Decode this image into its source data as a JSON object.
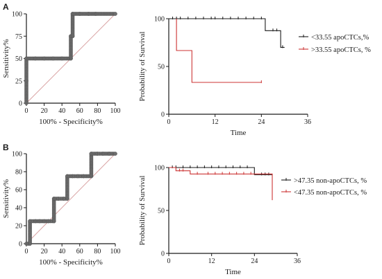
{
  "colors": {
    "black": "#1a1a1a",
    "red": "#cc3333",
    "diag": "#d9a3a3",
    "marker": "#6e6e6e"
  },
  "chart_data": [
    {
      "id": "A-roc",
      "panel_label": "A",
      "type": "line",
      "xlabel": "100% - Specificity%",
      "ylabel": "Sensitivity%",
      "xlim": [
        0,
        100
      ],
      "ylim": [
        0,
        100
      ],
      "xticks": [
        "0",
        "20",
        "40",
        "60",
        "80",
        "100"
      ],
      "yticks": [
        "0",
        "25",
        "50",
        "75",
        "100"
      ],
      "reference_line": [
        [
          0,
          0
        ],
        [
          100,
          100
        ]
      ],
      "series": [
        {
          "color": "#1a1a1a",
          "points": [
            [
              0,
              0
            ],
            [
              0,
              25
            ],
            [
              0,
              50
            ],
            [
              10,
              50
            ],
            [
              20,
              50
            ],
            [
              30,
              50
            ],
            [
              40,
              50
            ],
            [
              50,
              50
            ],
            [
              50,
              75
            ],
            [
              52,
              75
            ],
            [
              52,
              100
            ],
            [
              60,
              100
            ],
            [
              70,
              100
            ],
            [
              78,
              100
            ],
            [
              100,
              100
            ]
          ]
        }
      ]
    },
    {
      "id": "A-km",
      "type": "line",
      "xlabel": "Time",
      "ylabel": "Probability of Survival",
      "xlim": [
        0,
        36
      ],
      "ylim": [
        0,
        100
      ],
      "xticks": [
        "0",
        "12",
        "24",
        "36"
      ],
      "yticks": [
        "0",
        "50",
        "100"
      ],
      "legend_position": "right",
      "series": [
        {
          "name": "<33.55 apoCTCs,%",
          "color": "#1a1a1a",
          "steps": [
            [
              0,
              100
            ],
            [
              25,
              100
            ],
            [
              25,
              87.5
            ],
            [
              29,
              87.5
            ],
            [
              29,
              70
            ],
            [
              30,
              70
            ]
          ],
          "censors": [
            [
              1,
              100
            ],
            [
              2,
              100
            ],
            [
              3,
              100
            ],
            [
              5,
              100
            ],
            [
              7,
              100
            ],
            [
              9,
              100
            ],
            [
              11,
              100
            ],
            [
              12,
              100
            ],
            [
              14,
              100
            ],
            [
              16,
              100
            ],
            [
              18,
              100
            ],
            [
              20,
              100
            ],
            [
              22,
              100
            ],
            [
              24,
              100
            ],
            [
              27,
              87.5
            ],
            [
              28,
              87.5
            ],
            [
              29.5,
              70
            ]
          ]
        },
        {
          "name": ">33.55 apoCTCs, %",
          "color": "#cc3333",
          "steps": [
            [
              2,
              100
            ],
            [
              2,
              66.7
            ],
            [
              6,
              66.7
            ],
            [
              6,
              33.3
            ],
            [
              24,
              33.3
            ]
          ],
          "censors": [
            [
              24,
              33.3
            ]
          ]
        }
      ]
    },
    {
      "id": "B-roc",
      "panel_label": "B",
      "type": "line",
      "xlabel": "100% - Specificity%",
      "ylabel": "Sensitivity%",
      "xlim": [
        0,
        100
      ],
      "ylim": [
        0,
        100
      ],
      "xticks": [
        "0",
        "20",
        "40",
        "60",
        "80",
        "100"
      ],
      "yticks": [
        "0",
        "20",
        "40",
        "60",
        "80",
        "100"
      ],
      "reference_line": [
        [
          0,
          0
        ],
        [
          100,
          100
        ]
      ],
      "series": [
        {
          "color": "#1a1a1a",
          "points": [
            [
              0,
              0
            ],
            [
              2,
              0
            ],
            [
              4,
              0
            ],
            [
              4,
              25
            ],
            [
              10,
              25
            ],
            [
              15,
              25
            ],
            [
              20,
              25
            ],
            [
              25,
              25
            ],
            [
              31,
              25
            ],
            [
              31,
              50
            ],
            [
              36,
              50
            ],
            [
              42,
              50
            ],
            [
              46,
              50
            ],
            [
              46,
              75
            ],
            [
              52,
              75
            ],
            [
              58,
              75
            ],
            [
              64,
              75
            ],
            [
              73,
              75
            ],
            [
              73,
              100
            ],
            [
              80,
              100
            ],
            [
              86,
              100
            ],
            [
              93,
              100
            ],
            [
              100,
              100
            ]
          ]
        }
      ]
    },
    {
      "id": "B-km",
      "type": "line",
      "xlabel": "Time",
      "ylabel": "Probability of Survival",
      "xlim": [
        0,
        36
      ],
      "ylim": [
        0,
        100
      ],
      "xticks": [
        "0",
        "12",
        "24",
        "36"
      ],
      "yticks": [
        "0",
        "50",
        "100"
      ],
      "legend_position": "right",
      "series": [
        {
          "name": ">47.35 non-apoCTCs, %",
          "color": "#1a1a1a",
          "steps": [
            [
              0,
              100
            ],
            [
              24,
              100
            ],
            [
              24,
              91.7
            ],
            [
              29,
              91.7
            ]
          ],
          "censors": [
            [
              1,
              100
            ],
            [
              2,
              100
            ],
            [
              4,
              100
            ],
            [
              6,
              100
            ],
            [
              8,
              100
            ],
            [
              10,
              100
            ],
            [
              12,
              100
            ],
            [
              14,
              100
            ],
            [
              16,
              100
            ],
            [
              18,
              100
            ],
            [
              20,
              100
            ],
            [
              22,
              100
            ],
            [
              26,
              91.7
            ],
            [
              27,
              91.7
            ],
            [
              28,
              91.7
            ]
          ]
        },
        {
          "name": "<47.35 non-apoCTCs, %",
          "color": "#cc3333",
          "steps": [
            [
              0,
              100
            ],
            [
              2,
              100
            ],
            [
              2,
              96.2
            ],
            [
              6,
              96.2
            ],
            [
              6,
              92.5
            ],
            [
              29,
              92.5
            ],
            [
              29,
              62
            ]
          ],
          "censors": [
            [
              3,
              96.2
            ],
            [
              4,
              96.2
            ],
            [
              8,
              92.5
            ],
            [
              11,
              92.5
            ],
            [
              13,
              92.5
            ],
            [
              15,
              92.5
            ],
            [
              17,
              92.5
            ],
            [
              19,
              92.5
            ],
            [
              21,
              92.5
            ],
            [
              23,
              92.5
            ]
          ]
        }
      ]
    }
  ]
}
